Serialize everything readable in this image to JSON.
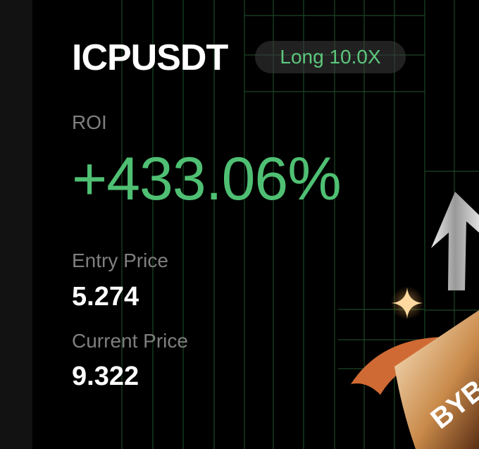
{
  "position": {
    "pair": "ICPUSDT",
    "side_leverage": "Long 10.0X",
    "roi_label": "ROI",
    "roi_value": "+433.06%",
    "entry_price_label": "Entry Price",
    "entry_price": "5.274",
    "current_price_label": "Current Price",
    "current_price": "9.322"
  },
  "branding": {
    "logo_text": "BYBIT"
  },
  "colors": {
    "background": "#000000",
    "accent_green": "#4fc073",
    "grid": "#1f4a2a"
  }
}
